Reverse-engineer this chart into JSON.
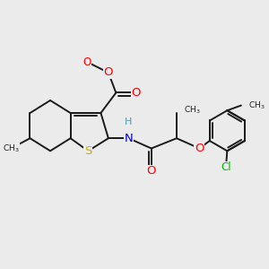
{
  "bg_color": "#ebebeb",
  "bond_color": "#1a1a1a",
  "bond_width": 1.4,
  "atom_colors": {
    "O": "#ff0000",
    "N": "#0000cc",
    "S": "#ccaa00",
    "Cl": "#00bb00",
    "C": "#1a1a1a",
    "H": "#5599aa"
  },
  "font_size": 8.5,
  "fig_size": [
    3.0,
    3.0
  ],
  "dpi": 100,
  "xlim": [
    0,
    10
  ],
  "ylim": [
    0,
    10
  ]
}
